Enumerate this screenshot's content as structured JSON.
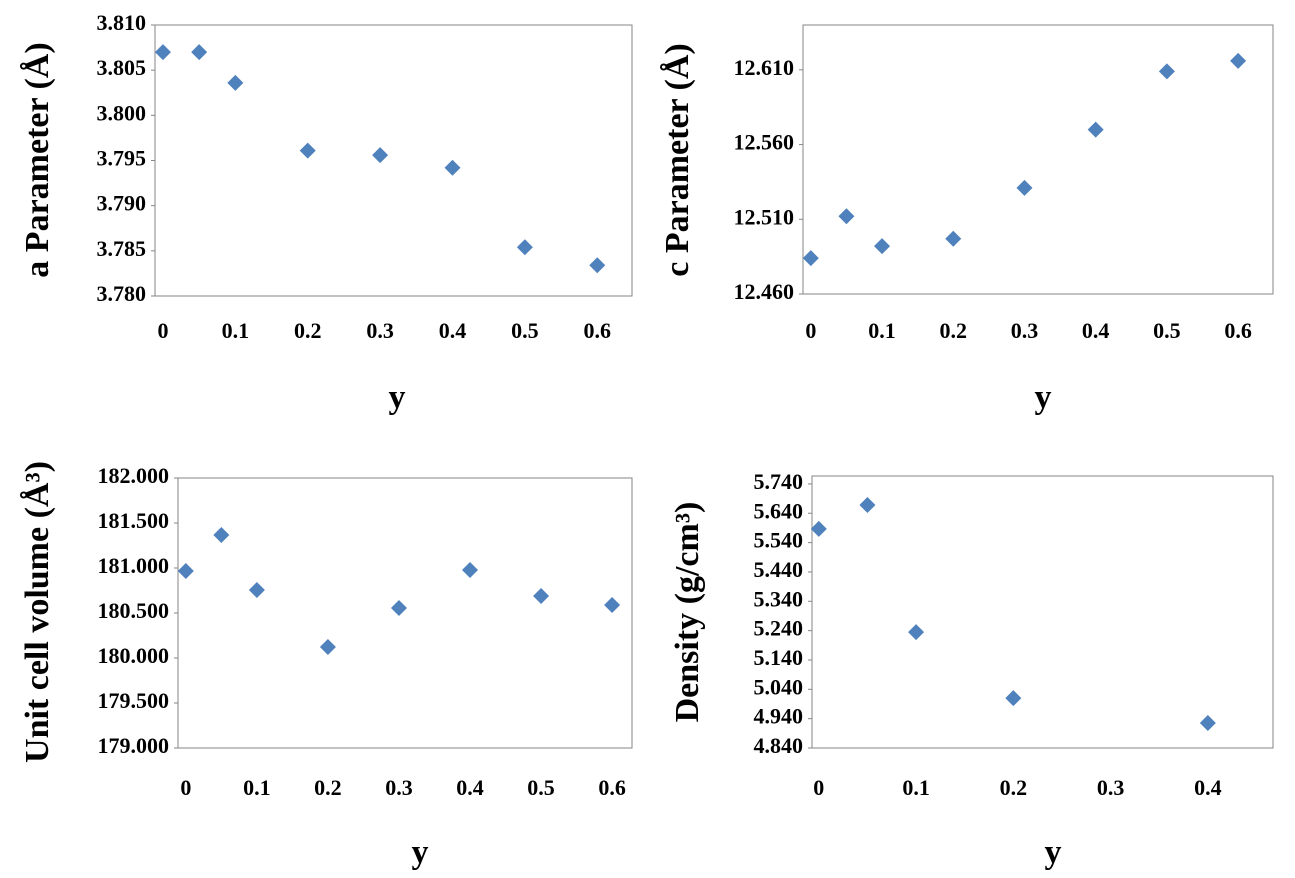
{
  "chart_data": [
    {
      "type": "scatter",
      "y_label": "a Parameter (Å)",
      "x_label": "y",
      "color": "#4f81bd",
      "x": [
        0,
        0.05,
        0.1,
        0.2,
        0.3,
        0.4,
        0.5,
        0.6
      ],
      "values": [
        3.807,
        3.807,
        3.8036,
        3.7961,
        3.7956,
        3.7942,
        3.7854,
        3.7834
      ],
      "xlim": [
        -0.011,
        0.648
      ],
      "xticks": [
        0,
        0.1,
        0.2,
        0.3,
        0.4,
        0.5,
        0.6
      ],
      "ylim": [
        3.78,
        3.81
      ],
      "yticks": [
        {
          "value": 3.78,
          "label": "3.780"
        },
        3.785,
        {
          "value": 3.79,
          "label": "3.790"
        },
        3.795,
        {
          "value": 3.8,
          "label": "3.800"
        },
        3.805,
        {
          "value": 3.81,
          "label": "3.810"
        }
      ],
      "grid": false
    },
    {
      "type": "scatter",
      "y_label": "c Parameter (Å)",
      "x_label": "y",
      "color": "#4f81bd",
      "x": [
        0,
        0.05,
        0.1,
        0.2,
        0.3,
        0.4,
        0.5,
        0.6
      ],
      "values": [
        12.484,
        12.512,
        12.492,
        12.497,
        12.531,
        12.57,
        12.609,
        12.616
      ],
      "xlim": [
        -0.011,
        0.649
      ],
      "xticks": [
        0,
        0.1,
        0.2,
        0.3,
        0.4,
        0.5,
        0.6
      ],
      "ylim": [
        12.46,
        12.64
      ],
      "yticks": [
        {
          "value": 12.46,
          "label": "12.460"
        },
        {
          "value": 12.51,
          "label": "12.510"
        },
        {
          "value": 12.56,
          "label": "12.560"
        },
        {
          "value": 12.61,
          "label": "12.610"
        }
      ],
      "grid": false
    },
    {
      "type": "scatter",
      "y_label": "Unit cell volume (Å³)",
      "x_label": "y",
      "color": "#4f81bd",
      "x": [
        0,
        0.05,
        0.1,
        0.2,
        0.3,
        0.4,
        0.5,
        0.6
      ],
      "values": [
        180.967,
        181.367,
        180.756,
        180.122,
        180.556,
        180.978,
        180.689,
        180.589
      ],
      "xlim": [
        -0.011,
        0.628
      ],
      "xticks": [
        0,
        0.1,
        0.2,
        0.3,
        0.4,
        0.5,
        0.6
      ],
      "ylim": [
        179,
        182
      ],
      "yticks": [
        {
          "value": 179,
          "label": "179.000"
        },
        {
          "value": 179.5,
          "label": "179.500"
        },
        {
          "value": 180,
          "label": "180.000"
        },
        {
          "value": 180.5,
          "label": "180.500"
        },
        {
          "value": 181,
          "label": "181.000"
        },
        {
          "value": 181.5,
          "label": "181.500"
        },
        {
          "value": 182,
          "label": "182.000"
        }
      ],
      "grid": false
    },
    {
      "type": "scatter",
      "y_label": "Density (g/cm³)",
      "x_label": "y",
      "color": "#4f81bd",
      "x": [
        0,
        0.05,
        0.1,
        0.2,
        0.4
      ],
      "values": [
        5.587,
        5.668,
        5.235,
        5.01,
        4.925
      ],
      "xlim": [
        -0.007,
        0.467
      ],
      "xticks": [
        0,
        0.1,
        0.2,
        0.3,
        0.4
      ],
      "ylim": [
        4.84,
        5.767
      ],
      "yticks": [
        {
          "value": 4.84,
          "label": "4.840"
        },
        {
          "value": 4.94,
          "label": "4.940"
        },
        {
          "value": 5.04,
          "label": "5.040"
        },
        {
          "value": 5.14,
          "label": "5.140"
        },
        {
          "value": 5.24,
          "label": "5.240"
        },
        {
          "value": 5.34,
          "label": "5.340"
        },
        {
          "value": 5.44,
          "label": "5.440"
        },
        {
          "value": 5.54,
          "label": "5.540"
        },
        {
          "value": 5.64,
          "label": "5.640"
        },
        {
          "value": 5.74,
          "label": "5.740"
        }
      ],
      "grid": false
    }
  ]
}
